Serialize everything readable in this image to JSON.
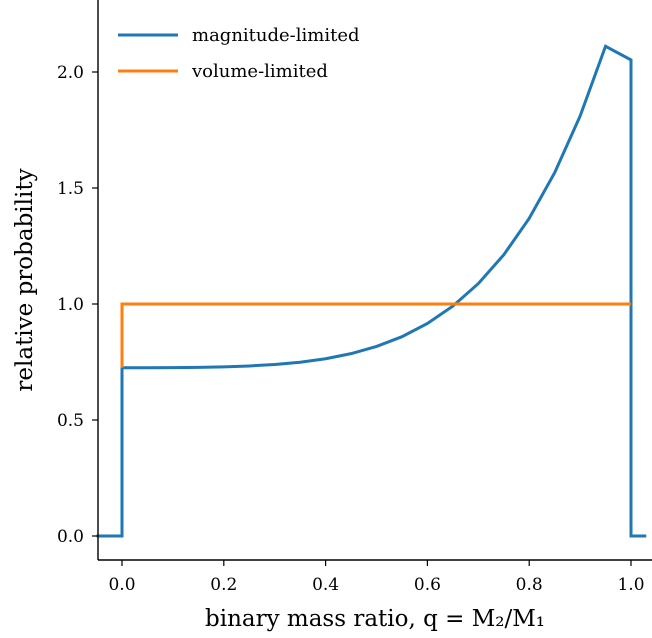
{
  "chart_data": {
    "type": "line",
    "title": "",
    "xlabel": "binary mass ratio, q = M₂/M₁",
    "ylabel": "relative probability",
    "xlim": [
      -0.05,
      1.03
    ],
    "ylim": [
      -0.06,
      2.3
    ],
    "x_ticks": [
      0.0,
      0.2,
      0.4,
      0.6,
      0.8,
      1.0
    ],
    "x_tick_labels": [
      "0.0",
      "0.2",
      "0.4",
      "0.6",
      "0.8",
      "1.0"
    ],
    "y_ticks": [
      0.0,
      0.5,
      1.0,
      1.5,
      2.0
    ],
    "y_tick_labels": [
      "0.0",
      "0.5",
      "1.0",
      "1.5",
      "2.0"
    ],
    "grid": false,
    "legend_position": "top-left",
    "series": [
      {
        "name": "magnitude-limited",
        "color": "#1f77b4",
        "x": [
          -0.05,
          0.0,
          0.0,
          0.05,
          0.1,
          0.15,
          0.2,
          0.25,
          0.3,
          0.35,
          0.4,
          0.45,
          0.5,
          0.55,
          0.6,
          0.65,
          0.7,
          0.75,
          0.8,
          0.85,
          0.9,
          0.95,
          1.0,
          1.0,
          1.03
        ],
        "y": [
          0.0,
          0.0,
          0.725,
          0.725,
          0.726,
          0.727,
          0.729,
          0.733,
          0.739,
          0.749,
          0.764,
          0.786,
          0.817,
          0.859,
          0.916,
          0.991,
          1.088,
          1.212,
          1.369,
          1.566,
          1.81,
          2.111,
          2.052,
          0.0,
          0.0
        ]
      },
      {
        "name": "volume-limited",
        "color": "#ff7f0e",
        "x": [
          0.0,
          0.0,
          1.0
        ],
        "y": [
          0.725,
          1.0,
          1.0
        ]
      }
    ]
  }
}
